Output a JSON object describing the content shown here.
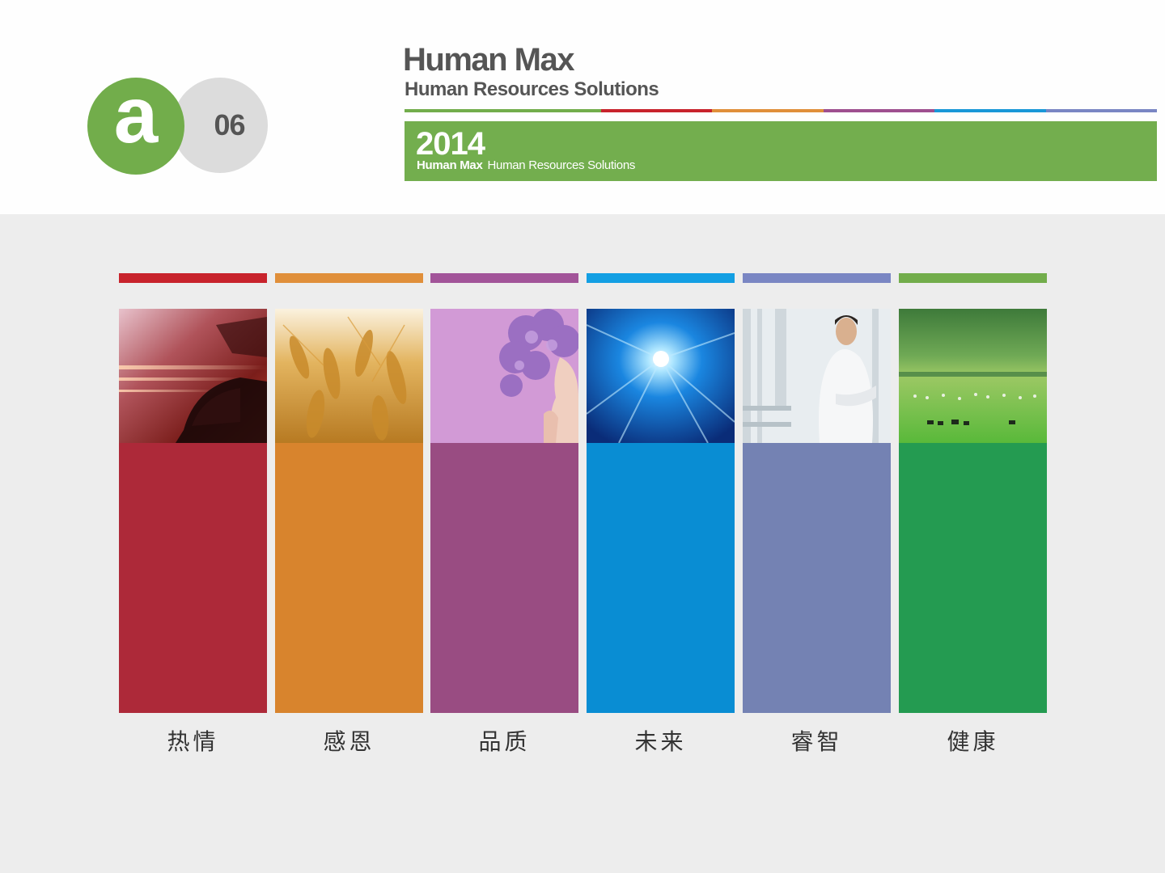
{
  "badge": {
    "letter": "a",
    "number": "06",
    "letter_color": "#72ad4b",
    "number_bg": "#dcdcdc"
  },
  "brand": {
    "title": "Human Max",
    "subtitle": "Human Resources Solutions"
  },
  "color_line": [
    "#72ad4b",
    "#c8232c",
    "#e08f3a",
    "#9e4f8f",
    "#1a98d8",
    "#7a86c3"
  ],
  "banner": {
    "year": "2014",
    "brand": "Human Max",
    "tagline": "Human Resources Solutions",
    "color": "#73ae4e"
  },
  "columns": [
    {
      "label": "热情",
      "bar_color": "#c8232c",
      "block_color": "#ad2939",
      "photo": "car-motion-photo"
    },
    {
      "label": "感恩",
      "bar_color": "#e08f3a",
      "block_color": "#d8842d",
      "photo": "wheat-field-photo"
    },
    {
      "label": "品质",
      "bar_color": "#a25499",
      "block_color": "#994c82",
      "photo": "flower-woman-photo"
    },
    {
      "label": "未来",
      "bar_color": "#139fe3",
      "block_color": "#098dd3",
      "photo": "light-tunnel-photo"
    },
    {
      "label": "睿智",
      "bar_color": "#7a86c3",
      "block_color": "#7482b3",
      "photo": "businessman-photo"
    },
    {
      "label": "健康",
      "bar_color": "#72ad4b",
      "block_color": "#249b51",
      "photo": "grassland-photo"
    }
  ]
}
